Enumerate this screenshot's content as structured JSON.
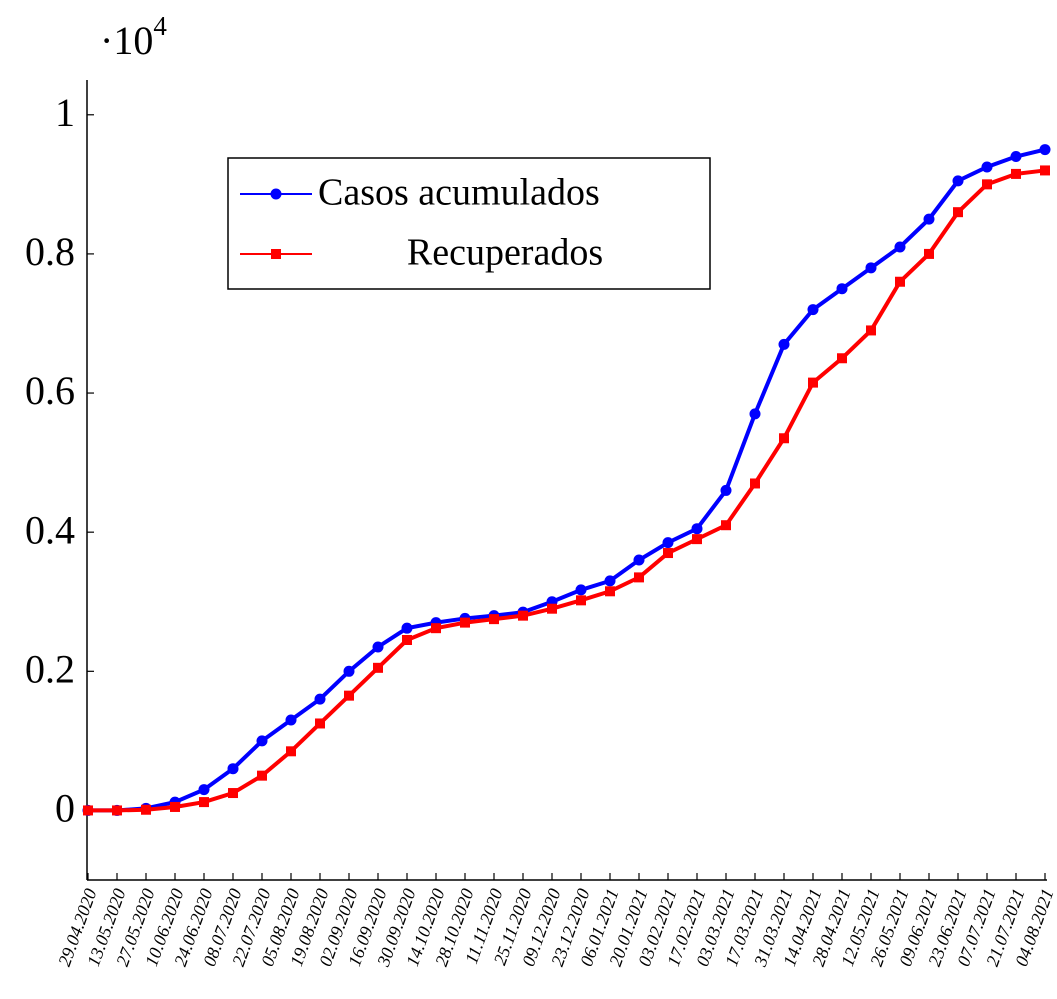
{
  "chart_data": {
    "type": "line",
    "y_multiplier": {
      "base": "·10",
      "exponent": "4"
    },
    "categories": [
      "29.04.2020",
      "13.05.2020",
      "27.05.2020",
      "10.06.2020",
      "24.06.2020",
      "08.07.2020",
      "22.07.2020",
      "05.08.2020",
      "19.08.2020",
      "02.09.2020",
      "16.09.2020",
      "30.09.2020",
      "14.10.2020",
      "28.10.2020",
      "11.11.2020",
      "25.11.2020",
      "09.12.2020",
      "23.12.2020",
      "06.01.2021",
      "20.01.2021",
      "03.02.2021",
      "17.02.2021",
      "03.03.2021",
      "17.03.2021",
      "31.03.2021",
      "14.04.2021",
      "28.04.2021",
      "12.05.2021",
      "26.05.2021",
      "09.06.2021",
      "23.06.2021",
      "07.07.2021",
      "21.07.2021",
      "04.08.2021"
    ],
    "series": [
      {
        "name": "Casos acumulados",
        "color": "#0000ff",
        "marker": "circle",
        "values": [
          0,
          0,
          0.003,
          0.012,
          0.03,
          0.06,
          0.1,
          0.13,
          0.16,
          0.2,
          0.235,
          0.262,
          0.27,
          0.276,
          0.28,
          0.285,
          0.3,
          0.317,
          0.33,
          0.36,
          0.385,
          0.405,
          0.46,
          0.57,
          0.67,
          0.72,
          0.75,
          0.78,
          0.81,
          0.85,
          0.905,
          0.925,
          0.94,
          0.95
        ]
      },
      {
        "name": "Recuperados",
        "color": "#ff0000",
        "marker": "square",
        "values": [
          0,
          0,
          0.001,
          0.005,
          0.012,
          0.025,
          0.05,
          0.085,
          0.125,
          0.165,
          0.205,
          0.245,
          0.262,
          0.27,
          0.275,
          0.28,
          0.29,
          0.302,
          0.315,
          0.335,
          0.37,
          0.39,
          0.41,
          0.47,
          0.535,
          0.615,
          0.65,
          0.69,
          0.76,
          0.8,
          0.86,
          0.9,
          0.915,
          0.92
        ]
      }
    ],
    "ylim": [
      -0.1,
      1.05
    ],
    "yticks": [
      0,
      0.2,
      0.4,
      0.6,
      0.8,
      1
    ],
    "grid": false
  }
}
